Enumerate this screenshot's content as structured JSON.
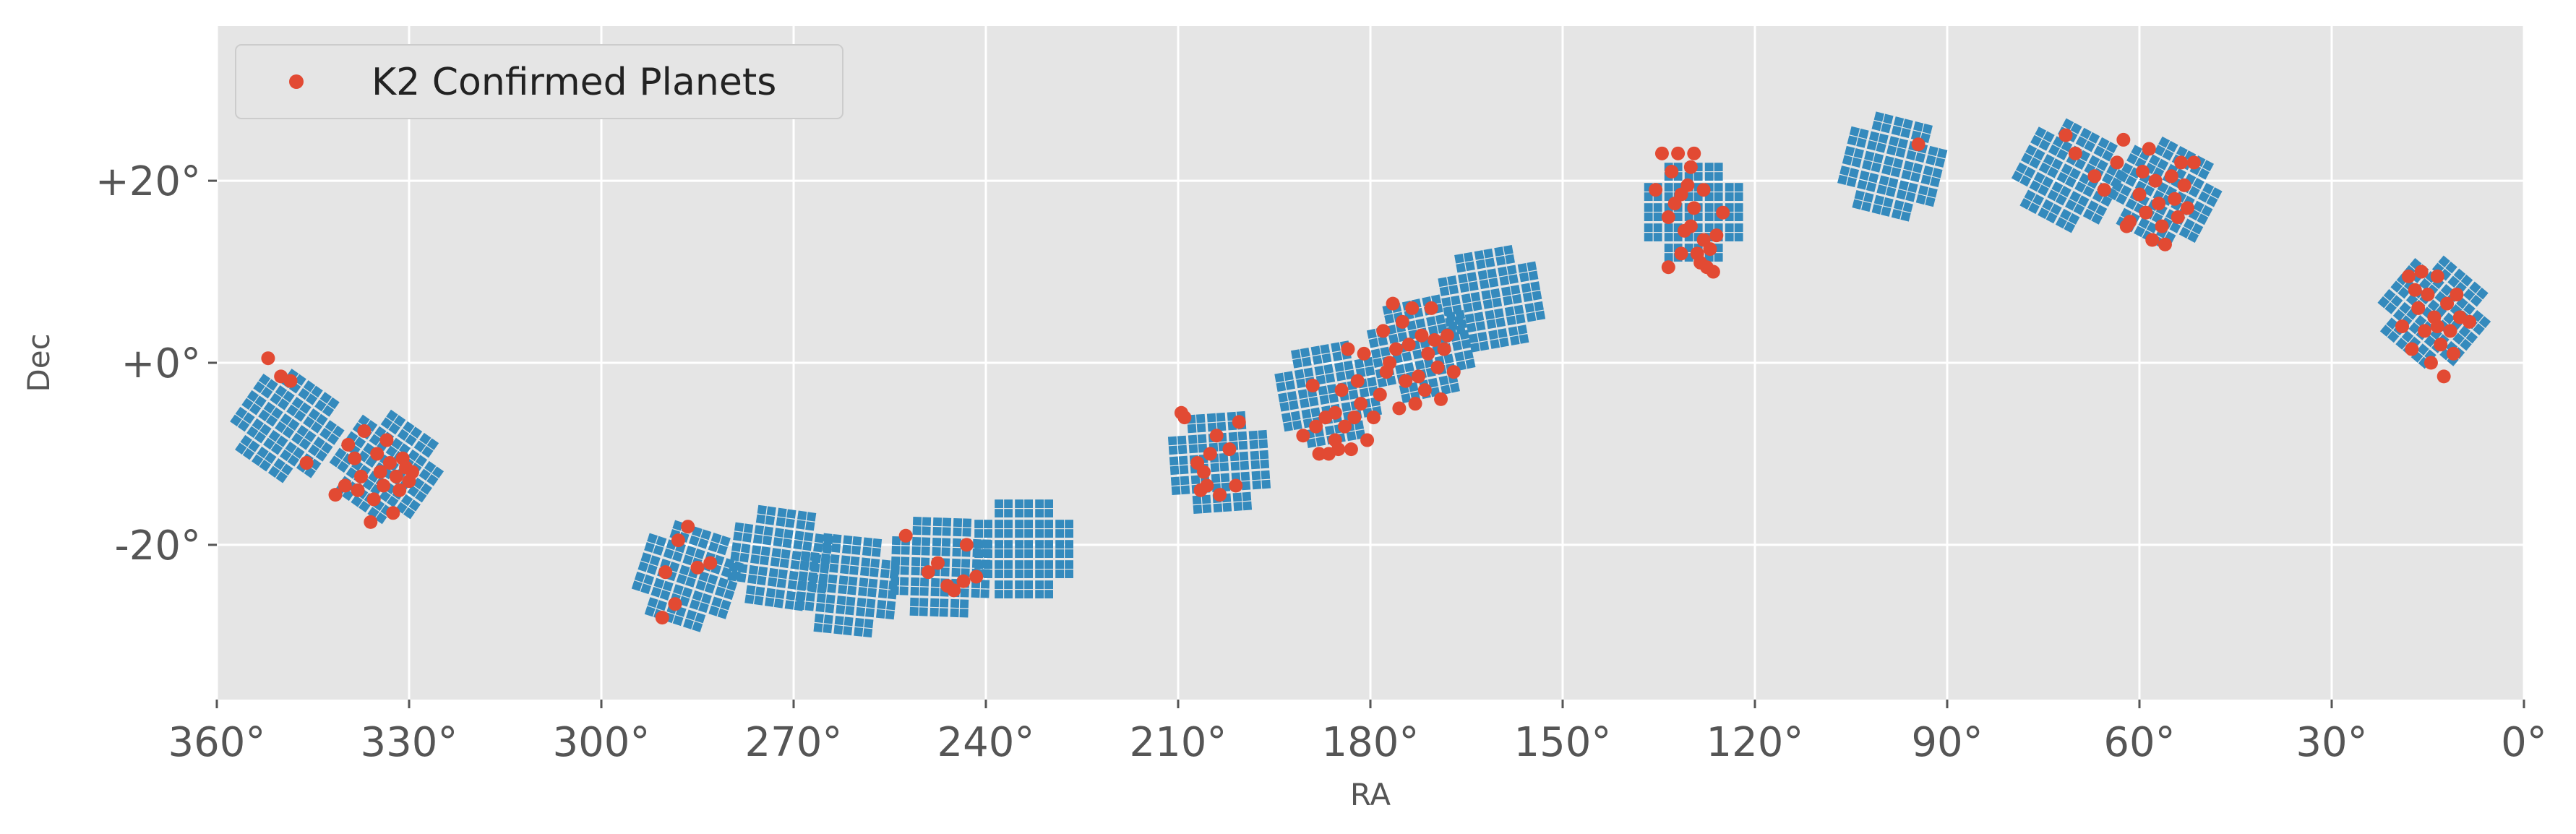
{
  "chart_data": {
    "type": "scatter",
    "xlabel": "RA",
    "ylabel": "Dec",
    "xlim": [
      360,
      0
    ],
    "ylim": [
      -37,
      37
    ],
    "x_ticks": [
      360,
      330,
      300,
      270,
      240,
      210,
      180,
      150,
      120,
      90,
      60,
      30,
      0
    ],
    "x_tick_labels": [
      "360°",
      "330°",
      "300°",
      "270°",
      "240°",
      "210°",
      "180°",
      "150°",
      "120°",
      "90°",
      "60°",
      "30°",
      "0°"
    ],
    "y_ticks": [
      20,
      0,
      -20
    ],
    "y_tick_labels": [
      "+20°",
      "+0°",
      "-20°"
    ],
    "grid": true,
    "legend_position": "top-left",
    "colors": {
      "background": "#e5e5e5",
      "grid": "#ffffff",
      "fields": "#348abd",
      "planets": "#e24a33"
    },
    "fields": [
      {
        "ra": 349,
        "dec": -7,
        "rotation": 35
      },
      {
        "ra": 333.5,
        "dec": -11.5,
        "rotation": 35
      },
      {
        "ra": 286.5,
        "dec": -23.5,
        "rotation": 18
      },
      {
        "ra": 272,
        "dec": -21.5,
        "rotation": 8
      },
      {
        "ra": 261.5,
        "dec": -24.5,
        "rotation": 6
      },
      {
        "ra": 247,
        "dec": -22.5,
        "rotation": 2
      },
      {
        "ra": 234,
        "dec": -20.5,
        "rotation": 0
      },
      {
        "ra": 203.5,
        "dec": -11,
        "rotation": -4
      },
      {
        "ra": 186.5,
        "dec": -3.5,
        "rotation": -10
      },
      {
        "ra": 172,
        "dec": 1.5,
        "rotation": -12
      },
      {
        "ra": 161,
        "dec": 7,
        "rotation": -10
      },
      {
        "ra": 129.5,
        "dec": 16.5,
        "rotation": 0
      },
      {
        "ra": 98.5,
        "dec": 21.5,
        "rotation": 14
      },
      {
        "ra": 71,
        "dec": 20.5,
        "rotation": 28
      },
      {
        "ra": 56,
        "dec": 18.5,
        "rotation": 28
      },
      {
        "ra": 14,
        "dec": 5.5,
        "rotation": 40
      }
    ],
    "series": [
      {
        "name": "K2 Confirmed Planets",
        "points": [
          [
            352,
            0.5
          ],
          [
            350,
            -1.5
          ],
          [
            348.5,
            -2
          ],
          [
            346,
            -11
          ],
          [
            340,
            -13.5
          ],
          [
            339.5,
            -9
          ],
          [
            338.5,
            -10.5
          ],
          [
            337,
            -7.5
          ],
          [
            336,
            -17.5
          ],
          [
            335.5,
            -15
          ],
          [
            335,
            -10
          ],
          [
            334.5,
            -12
          ],
          [
            334,
            -13.5
          ],
          [
            333.5,
            -8.5
          ],
          [
            333,
            -11
          ],
          [
            332.5,
            -16.5
          ],
          [
            332,
            -12.5
          ],
          [
            331.5,
            -14
          ],
          [
            331,
            -10.5
          ],
          [
            330.5,
            -11.5
          ],
          [
            330,
            -13
          ],
          [
            329.5,
            -12
          ],
          [
            341.5,
            -14.5
          ],
          [
            338,
            -14
          ],
          [
            337.5,
            -12.5
          ],
          [
            290.5,
            -28
          ],
          [
            290,
            -23
          ],
          [
            288,
            -19.5
          ],
          [
            286.5,
            -18
          ],
          [
            285,
            -22.5
          ],
          [
            283,
            -22
          ],
          [
            288.5,
            -26.5
          ],
          [
            252.5,
            -19
          ],
          [
            249,
            -23
          ],
          [
            247.5,
            -22
          ],
          [
            246,
            -24.5
          ],
          [
            245,
            -25
          ],
          [
            243,
            -20
          ],
          [
            243.5,
            -24
          ],
          [
            241.5,
            -23.5
          ],
          [
            209.5,
            -5.5
          ],
          [
            209,
            -6
          ],
          [
            206,
            -12
          ],
          [
            205.5,
            -13.5
          ],
          [
            205,
            -10
          ],
          [
            204,
            -8
          ],
          [
            203.5,
            -14.5
          ],
          [
            202,
            -9.5
          ],
          [
            201,
            -13.5
          ],
          [
            200.5,
            -6.5
          ],
          [
            207,
            -11
          ],
          [
            206.5,
            -14
          ],
          [
            190.5,
            -8
          ],
          [
            189,
            -2.5
          ],
          [
            188,
            -10
          ],
          [
            187,
            -6
          ],
          [
            186.5,
            -10
          ],
          [
            185.5,
            -5.5
          ],
          [
            185,
            -9.5
          ],
          [
            184.5,
            -3
          ],
          [
            184,
            -7
          ],
          [
            183.5,
            1.5
          ],
          [
            183,
            -9.5
          ],
          [
            182.5,
            -6
          ],
          [
            182,
            -2
          ],
          [
            181.5,
            -4.5
          ],
          [
            181,
            1
          ],
          [
            180.5,
            -8.5
          ],
          [
            179.5,
            -6
          ],
          [
            178.5,
            -3.5
          ],
          [
            178,
            3.5
          ],
          [
            177.5,
            -1
          ],
          [
            176.5,
            6.5
          ],
          [
            176,
            1.5
          ],
          [
            175.5,
            -5
          ],
          [
            175,
            4.5
          ],
          [
            174.5,
            -2
          ],
          [
            174,
            2
          ],
          [
            173.5,
            6
          ],
          [
            173,
            -4.5
          ],
          [
            172.5,
            -1.5
          ],
          [
            172,
            3
          ],
          [
            171.5,
            -3
          ],
          [
            171,
            1
          ],
          [
            170.5,
            6
          ],
          [
            170,
            2.5
          ],
          [
            169.5,
            -0.5
          ],
          [
            169,
            -4
          ],
          [
            168.5,
            1.5
          ],
          [
            168,
            3
          ],
          [
            167,
            -1
          ],
          [
            185.5,
            -8.5
          ],
          [
            188.5,
            -7
          ],
          [
            177,
            0
          ],
          [
            135.5,
            19
          ],
          [
            134.5,
            23
          ],
          [
            133.5,
            16
          ],
          [
            133,
            21
          ],
          [
            132.5,
            17.5
          ],
          [
            132,
            23
          ],
          [
            131.5,
            18.5
          ],
          [
            131,
            14.5
          ],
          [
            130.5,
            19.5
          ],
          [
            130,
            21.5
          ],
          [
            129.5,
            17
          ],
          [
            129,
            12
          ],
          [
            128.5,
            11
          ],
          [
            128,
            13.5
          ],
          [
            127.5,
            10.5
          ],
          [
            127,
            12.5
          ],
          [
            126.5,
            10
          ],
          [
            126,
            14
          ],
          [
            125,
            16.5
          ],
          [
            129.5,
            23
          ],
          [
            131.5,
            12
          ],
          [
            128,
            19
          ],
          [
            133.5,
            10.5
          ],
          [
            130,
            15
          ],
          [
            94.5,
            24
          ],
          [
            71.5,
            25
          ],
          [
            70,
            23
          ],
          [
            67,
            20.5
          ],
          [
            65.5,
            19
          ],
          [
            63.5,
            22
          ],
          [
            62.5,
            24.5
          ],
          [
            61.5,
            15.5
          ],
          [
            60,
            18.5
          ],
          [
            59.5,
            21
          ],
          [
            59,
            16.5
          ],
          [
            58.5,
            23.5
          ],
          [
            57.5,
            20
          ],
          [
            57,
            17.5
          ],
          [
            56.5,
            15
          ],
          [
            56,
            13
          ],
          [
            55,
            20.5
          ],
          [
            54.5,
            18
          ],
          [
            54,
            16
          ],
          [
            53.5,
            22
          ],
          [
            53,
            19.5
          ],
          [
            52.5,
            17
          ],
          [
            51.5,
            22
          ],
          [
            58,
            13.5
          ],
          [
            62,
            15
          ],
          [
            19,
            4
          ],
          [
            18,
            9.5
          ],
          [
            17.5,
            1.5
          ],
          [
            16.5,
            6
          ],
          [
            16,
            10
          ],
          [
            15.5,
            3.5
          ],
          [
            15,
            7.5
          ],
          [
            14.5,
            0
          ],
          [
            14,
            5
          ],
          [
            13.5,
            9.5
          ],
          [
            13,
            2
          ],
          [
            12.5,
            -1.5
          ],
          [
            12,
            6.5
          ],
          [
            11.5,
            3.5
          ],
          [
            11,
            1
          ],
          [
            10.5,
            7.5
          ],
          [
            10,
            5
          ],
          [
            8.5,
            4.5
          ],
          [
            17,
            8
          ],
          [
            13.5,
            4
          ]
        ]
      }
    ]
  }
}
